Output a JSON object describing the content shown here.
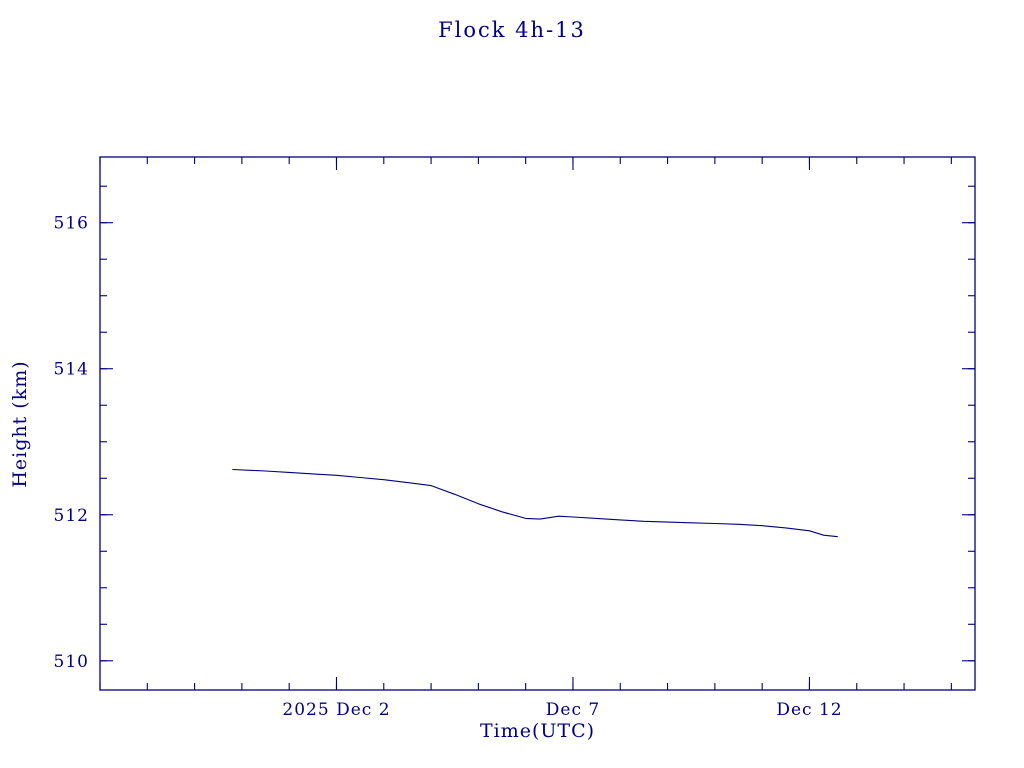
{
  "colors": {
    "accent": "#000080",
    "background": "#ffffff"
  },
  "chart_data": {
    "type": "line",
    "title": "Flock 4h-13",
    "xlabel": "Time(UTC)",
    "ylabel": "Height (km)",
    "x_axis_encoding": "day of December 2025 (Nov 30 = 0)",
    "xlim": [
      -3,
      15.5
    ],
    "ylim": [
      509.6,
      516.9
    ],
    "grid": false,
    "legend": "none",
    "line_color": "#000080",
    "x": [
      -0.2,
      0.5,
      1.0,
      1.5,
      2.0,
      2.5,
      3.0,
      3.5,
      4.0,
      4.5,
      5.0,
      5.5,
      6.0,
      6.3,
      6.7,
      7.0,
      7.5,
      8.0,
      8.5,
      9.0,
      9.5,
      10.0,
      10.5,
      11.0,
      11.5,
      12.0,
      12.3,
      12.6
    ],
    "y": [
      512.62,
      512.6,
      512.58,
      512.56,
      512.54,
      512.51,
      512.48,
      512.44,
      512.4,
      512.28,
      512.15,
      512.04,
      511.95,
      511.94,
      511.98,
      511.97,
      511.95,
      511.93,
      511.91,
      511.9,
      511.89,
      511.88,
      511.87,
      511.85,
      511.82,
      511.78,
      511.72,
      511.7
    ],
    "xticks": {
      "minor_step": 1,
      "major": [
        {
          "value": 2,
          "label": "2025 Dec 2"
        },
        {
          "value": 7,
          "label": "Dec 7"
        },
        {
          "value": 12,
          "label": "Dec 12"
        }
      ]
    },
    "yticks": {
      "minor_step": 0.5,
      "major": [
        {
          "value": 510,
          "label": "510"
        },
        {
          "value": 512,
          "label": "512"
        },
        {
          "value": 514,
          "label": "514"
        },
        {
          "value": 516,
          "label": "516"
        }
      ]
    }
  }
}
